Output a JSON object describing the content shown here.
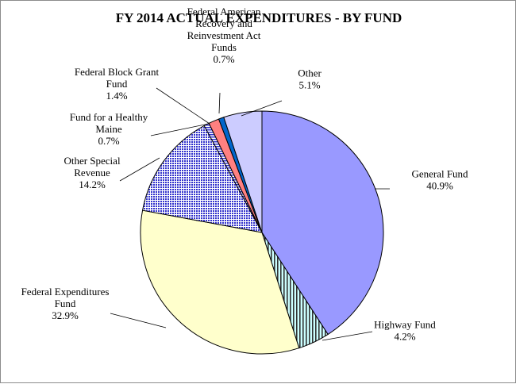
{
  "chart_data": {
    "type": "pie",
    "title": "FY 2014 ACTUAL  EXPENDITURES  - BY FUND",
    "slices": [
      {
        "label_lines": [
          "General Fund"
        ],
        "value_text": "40.9%",
        "value": 40.9,
        "fill": "#9999ff",
        "pattern": "solid"
      },
      {
        "label_lines": [
          "Highway Fund"
        ],
        "value_text": "4.2%",
        "value": 4.2,
        "fill": "#ccffff",
        "pattern": "vertical-stripes"
      },
      {
        "label_lines": [
          "Federal Expenditures",
          "Fund"
        ],
        "value_text": "32.9%",
        "value": 32.9,
        "fill": "#ffffcc",
        "pattern": "solid"
      },
      {
        "label_lines": [
          "Other Special",
          "Revenue"
        ],
        "value_text": "14.2%",
        "value": 14.2,
        "fill": "#9999ff",
        "pattern": "dots"
      },
      {
        "label_lines": [
          "Fund for a Healthy",
          "Maine"
        ],
        "value_text": "0.7%",
        "value": 0.7,
        "fill": "#9999ff",
        "pattern": "horizontal-stripes"
      },
      {
        "label_lines": [
          "Federal Block Grant",
          "Fund"
        ],
        "value_text": "1.4%",
        "value": 1.4,
        "fill": "#ff8080",
        "pattern": "solid"
      },
      {
        "label_lines": [
          "Federal American",
          "Recovery and",
          "Reinvestment Act",
          "Funds"
        ],
        "value_text": "0.7%",
        "value": 0.7,
        "fill": "#0066cc",
        "pattern": "solid"
      },
      {
        "label_lines": [
          "Other"
        ],
        "value_text": "5.1%",
        "value": 5.1,
        "fill": "#ccccff",
        "pattern": "solid"
      }
    ],
    "start_angle_deg": 0,
    "direction": "clockwise",
    "slice_border_color": "#000000",
    "leader_line_color": "#000000"
  }
}
